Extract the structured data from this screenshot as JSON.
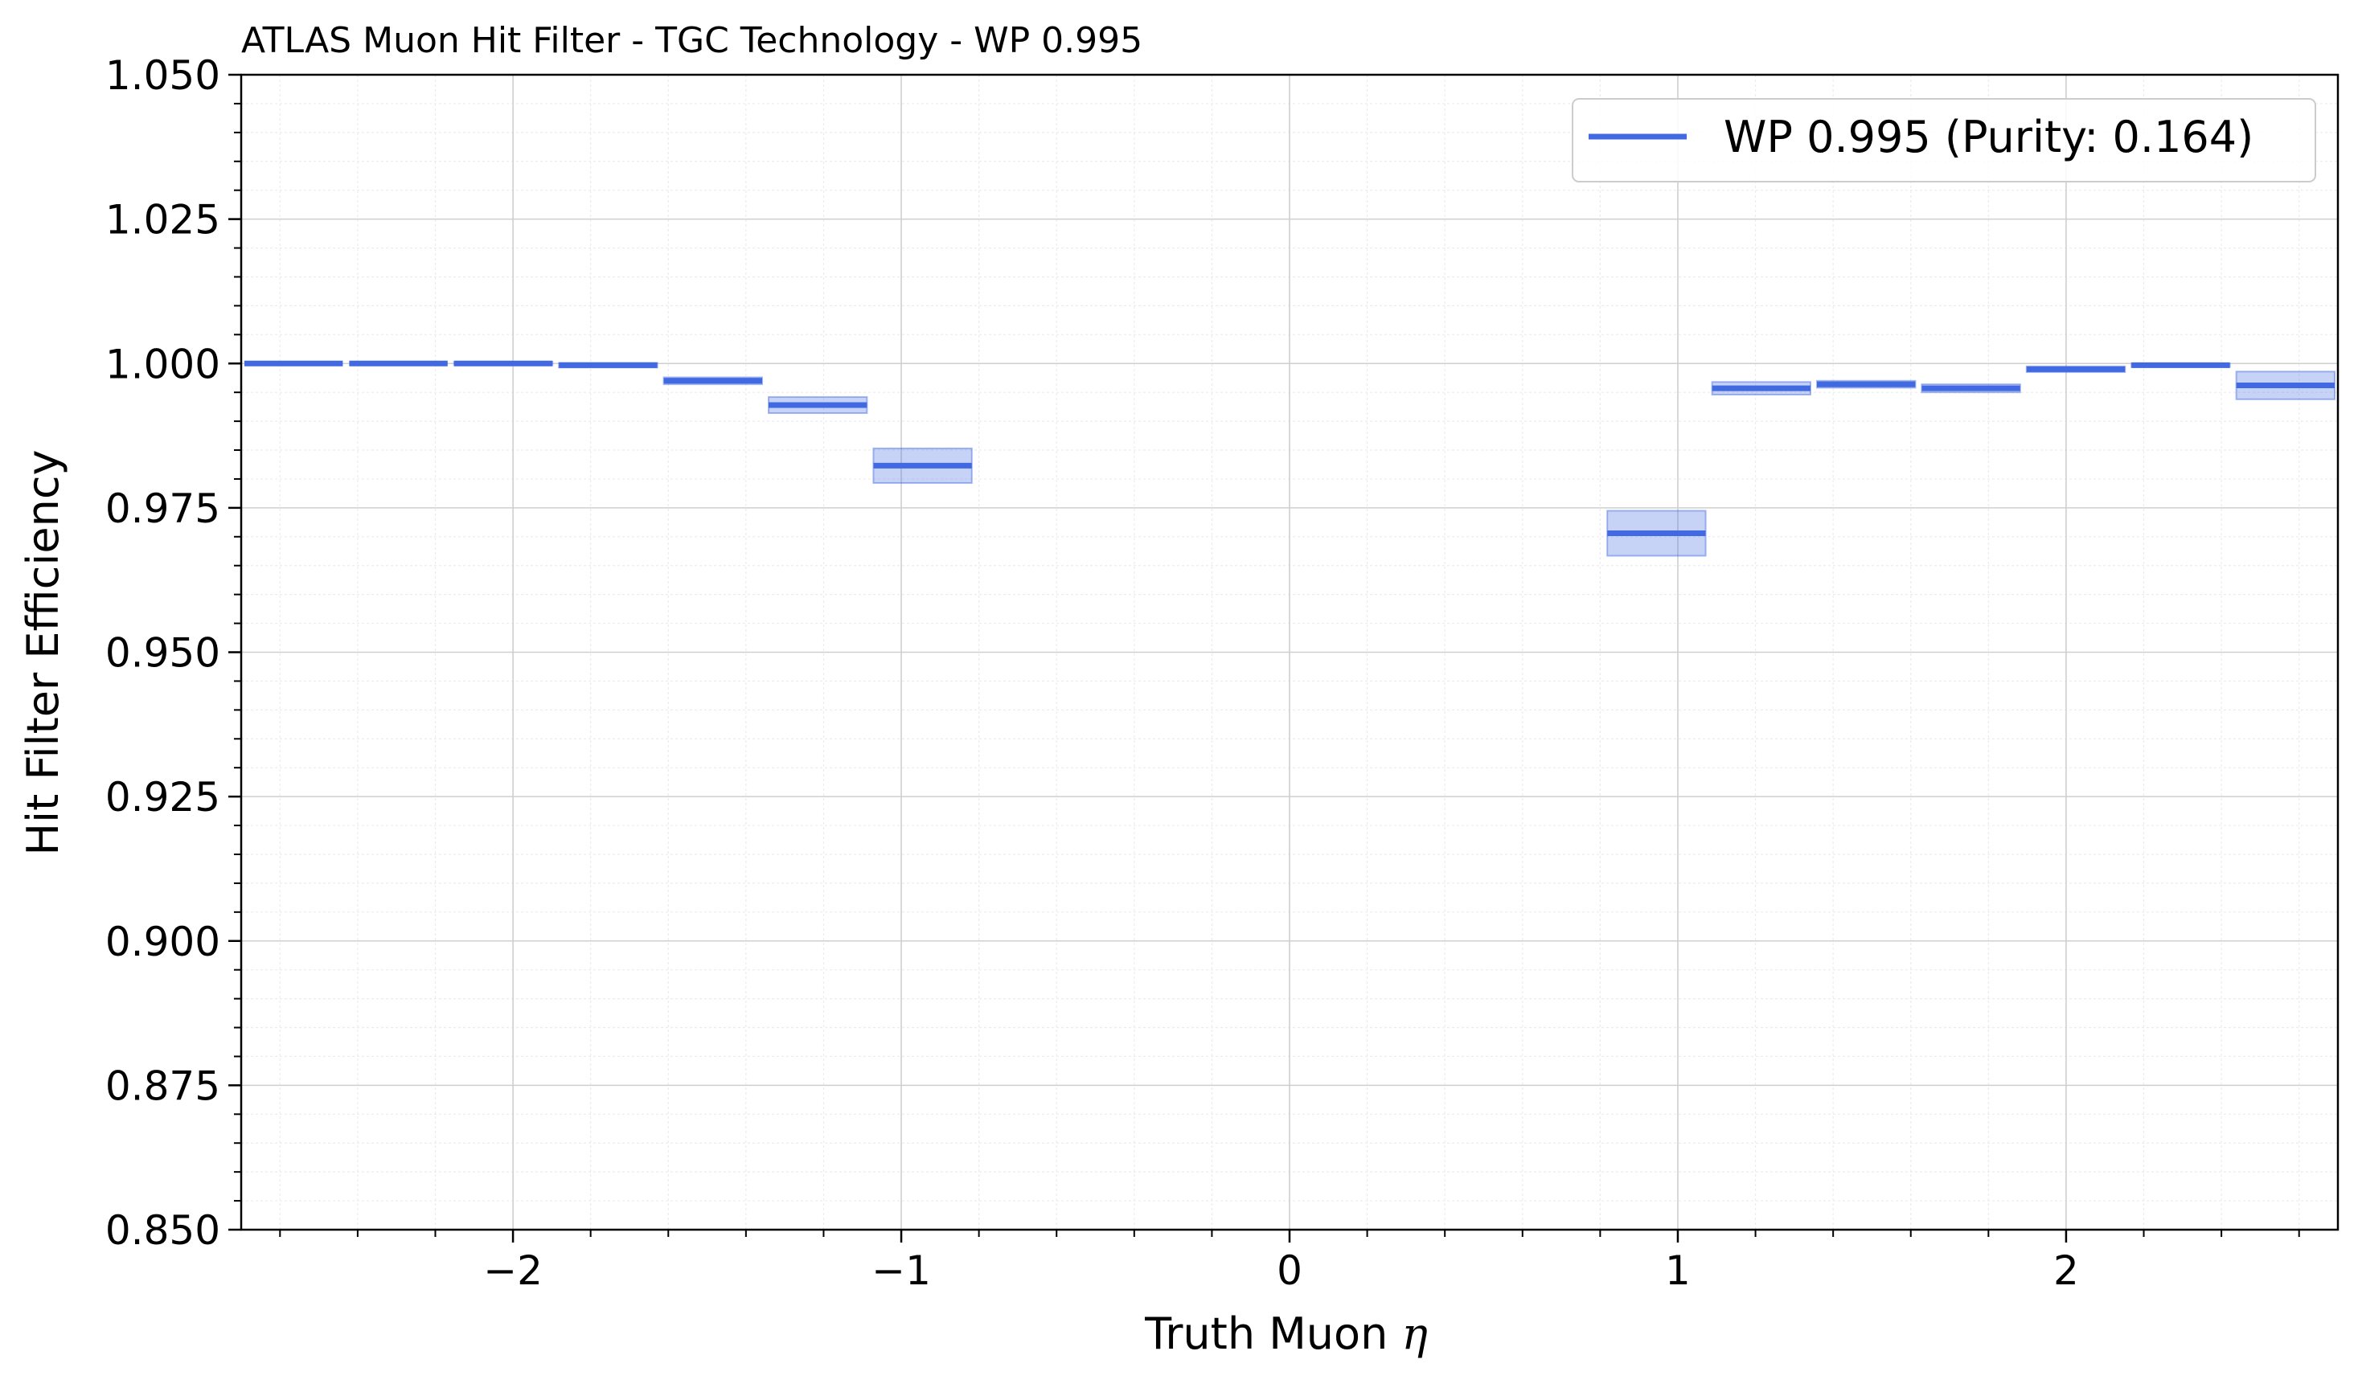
{
  "chart_data": {
    "type": "line",
    "title": "ATLAS Muon Hit Filter - TGC Technology - WP 0.995",
    "xlabel": "Truth Muon",
    "xlabel_symbol": "η",
    "ylabel": "Hit Filter Efficiency",
    "xlim": [
      -2.7,
      2.7
    ],
    "ylim": [
      0.85,
      1.05
    ],
    "grid": true,
    "legend_position": "top-right",
    "series_color": "#4169e1",
    "x_ticks": [
      {
        "value": -2,
        "label": "−2"
      },
      {
        "value": -1,
        "label": "−1"
      },
      {
        "value": 0,
        "label": "0"
      },
      {
        "value": 1,
        "label": "1"
      },
      {
        "value": 2,
        "label": "2"
      }
    ],
    "y_ticks": [
      {
        "value": 0.85,
        "label": "0.850"
      },
      {
        "value": 0.875,
        "label": "0.875"
      },
      {
        "value": 0.9,
        "label": "0.900"
      },
      {
        "value": 0.925,
        "label": "0.925"
      },
      {
        "value": 0.95,
        "label": "0.950"
      },
      {
        "value": 0.975,
        "label": "0.975"
      },
      {
        "value": 1.0,
        "label": "1.000"
      },
      {
        "value": 1.025,
        "label": "1.025"
      },
      {
        "value": 1.05,
        "label": "1.050"
      }
    ],
    "series": [
      {
        "name": "WP 0.995 (Purity: 0.164)",
        "bins": [
          {
            "x0": -2.7,
            "x1": -2.43,
            "y": 1.0,
            "err": 0.0
          },
          {
            "x0": -2.43,
            "x1": -2.16,
            "y": 1.0,
            "err": 0.0
          },
          {
            "x0": -2.16,
            "x1": -1.89,
            "y": 1.0,
            "err": 0.0003
          },
          {
            "x0": -1.89,
            "x1": -1.62,
            "y": 0.9997,
            "err": 0.0004
          },
          {
            "x0": -1.62,
            "x1": -1.35,
            "y": 0.997,
            "err": 0.0006
          },
          {
            "x0": -1.35,
            "x1": -1.08,
            "y": 0.9928,
            "err": 0.0014
          },
          {
            "x0": -1.08,
            "x1": -0.81,
            "y": 0.9823,
            "err": 0.003
          },
          {
            "x0": 0.81,
            "x1": 1.08,
            "y": 0.9706,
            "err": 0.0039
          },
          {
            "x0": 1.08,
            "x1": 1.35,
            "y": 0.9957,
            "err": 0.0011
          },
          {
            "x0": 1.35,
            "x1": 1.62,
            "y": 0.9964,
            "err": 0.0006
          },
          {
            "x0": 1.62,
            "x1": 1.89,
            "y": 0.9957,
            "err": 0.0007
          },
          {
            "x0": 1.89,
            "x1": 2.16,
            "y": 0.999,
            "err": 0.0005
          },
          {
            "x0": 2.16,
            "x1": 2.43,
            "y": 0.9997,
            "err": 0.0003
          },
          {
            "x0": 2.43,
            "x1": 2.7,
            "y": 0.9962,
            "err": 0.0024
          }
        ]
      }
    ]
  }
}
